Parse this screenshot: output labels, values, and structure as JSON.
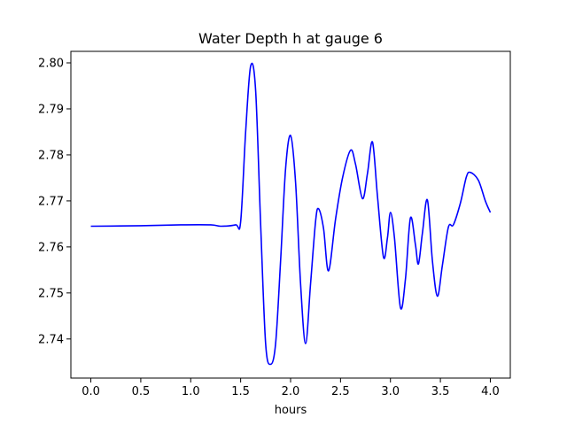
{
  "chart_data": {
    "type": "line",
    "title": "Water Depth h at gauge 6",
    "xlabel": "hours",
    "ylabel": "",
    "xlim": [
      -0.2,
      4.2
    ],
    "ylim": [
      2.7315,
      2.8025
    ],
    "x_ticks": [
      0.0,
      0.5,
      1.0,
      1.5,
      2.0,
      2.5,
      3.0,
      3.5,
      4.0
    ],
    "x_tick_labels": [
      "0.0",
      "0.5",
      "1.0",
      "1.5",
      "2.0",
      "2.5",
      "3.0",
      "3.5",
      "4.0"
    ],
    "y_ticks": [
      2.74,
      2.75,
      2.76,
      2.77,
      2.78,
      2.79,
      2.8
    ],
    "y_tick_labels": [
      "2.74",
      "2.75",
      "2.76",
      "2.77",
      "2.78",
      "2.79",
      "2.80"
    ],
    "grid": false,
    "legend": "none",
    "series": [
      {
        "color": "#0000ff",
        "points": [
          [
            0.0,
            2.7645
          ],
          [
            0.5,
            2.7646
          ],
          [
            0.9,
            2.7648
          ],
          [
            1.2,
            2.7648
          ],
          [
            1.3,
            2.7645
          ],
          [
            1.45,
            2.7648
          ],
          [
            1.5,
            2.7655
          ],
          [
            1.55,
            2.785
          ],
          [
            1.6,
            2.7993
          ],
          [
            1.65,
            2.794
          ],
          [
            1.7,
            2.765
          ],
          [
            1.75,
            2.739
          ],
          [
            1.8,
            2.7345
          ],
          [
            1.85,
            2.739
          ],
          [
            1.9,
            2.757
          ],
          [
            1.95,
            2.777
          ],
          [
            2.0,
            2.7842
          ],
          [
            2.05,
            2.774
          ],
          [
            2.1,
            2.752
          ],
          [
            2.15,
            2.739
          ],
          [
            2.2,
            2.752
          ],
          [
            2.25,
            2.7655
          ],
          [
            2.28,
            2.7683
          ],
          [
            2.33,
            2.764
          ],
          [
            2.38,
            2.7548
          ],
          [
            2.45,
            2.766
          ],
          [
            2.52,
            2.775
          ],
          [
            2.6,
            2.781
          ],
          [
            2.65,
            2.778
          ],
          [
            2.72,
            2.7705
          ],
          [
            2.77,
            2.776
          ],
          [
            2.82,
            2.7828
          ],
          [
            2.87,
            2.771
          ],
          [
            2.93,
            2.7578
          ],
          [
            2.97,
            2.762
          ],
          [
            3.0,
            2.7675
          ],
          [
            3.04,
            2.762
          ],
          [
            3.1,
            2.7468
          ],
          [
            3.15,
            2.753
          ],
          [
            3.2,
            2.7663
          ],
          [
            3.25,
            2.7605
          ],
          [
            3.28,
            2.7563
          ],
          [
            3.32,
            2.763
          ],
          [
            3.37,
            2.7702
          ],
          [
            3.42,
            2.757
          ],
          [
            3.47,
            2.7493
          ],
          [
            3.52,
            2.756
          ],
          [
            3.58,
            2.7643
          ],
          [
            3.63,
            2.7648
          ],
          [
            3.7,
            2.7695
          ],
          [
            3.76,
            2.7752
          ],
          [
            3.8,
            2.7762
          ],
          [
            3.88,
            2.7745
          ],
          [
            3.95,
            2.77
          ],
          [
            4.0,
            2.7675
          ]
        ]
      }
    ]
  }
}
